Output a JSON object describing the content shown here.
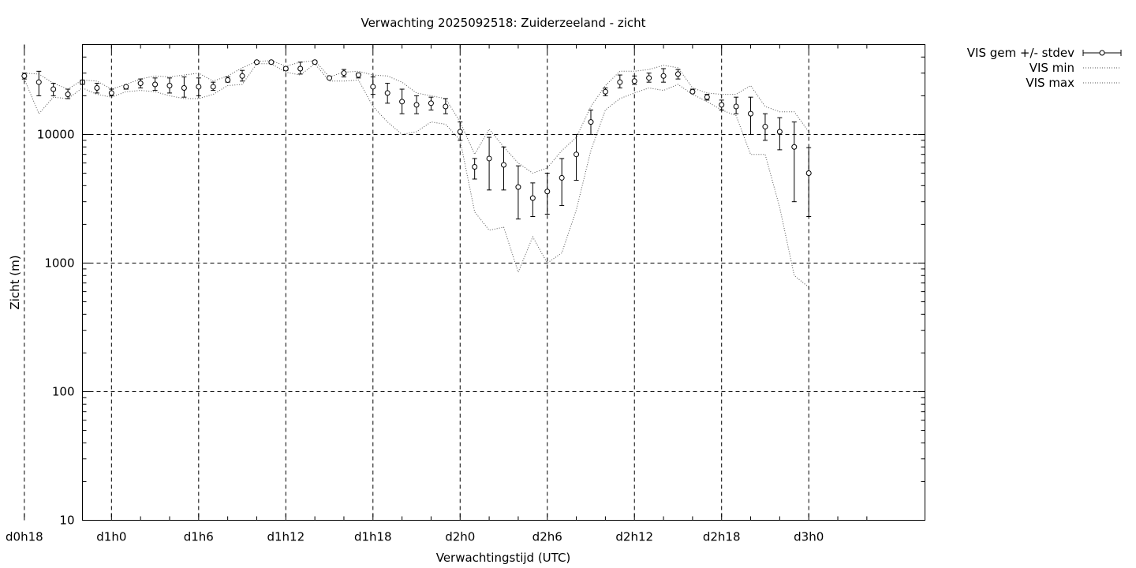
{
  "chart_data": {
    "type": "line",
    "title": "Verwachting 2025092518: Zuiderzeeland - zicht",
    "xlabel": "Verwachtingstijd (UTC)",
    "ylabel": "Zicht (m)",
    "yscale": "log",
    "ylim": [
      10,
      50000
    ],
    "xlim_hours": [
      -2,
      56
    ],
    "grid": true,
    "legend_position": "outside-top-right",
    "x_tick_labels": [
      "d0h18",
      "d1h0",
      "d1h6",
      "d1h12",
      "d1h18",
      "d2h0",
      "d2h6",
      "d2h12",
      "d2h18",
      "d3h0"
    ],
    "y_tick_labels": [
      "10",
      "100",
      "1000",
      "10000"
    ],
    "series": [
      {
        "name": "VIS gem +/- stdev",
        "style": "points-errorbars",
        "x": [
          "d0h18",
          "d0h19",
          "d0h20",
          "d0h21",
          "d0h22",
          "d0h23",
          "d1h0",
          "d1h1",
          "d1h2",
          "d1h3",
          "d1h4",
          "d1h5",
          "d1h6",
          "d1h7",
          "d1h8",
          "d1h9",
          "d1h10",
          "d1h11",
          "d1h12",
          "d1h13",
          "d1h14",
          "d1h15",
          "d1h16",
          "d1h17",
          "d1h18",
          "d1h19",
          "d1h20",
          "d1h21",
          "d1h22",
          "d1h23",
          "d2h0",
          "d2h1",
          "d2h2",
          "d2h3",
          "d2h4",
          "d2h5",
          "d2h6",
          "d2h7",
          "d2h8",
          "d2h9",
          "d2h10",
          "d2h11",
          "d2h12",
          "d2h13",
          "d2h14",
          "d2h15",
          "d2h16",
          "d2h17",
          "d2h18",
          "d2h19",
          "d2h20",
          "d2h21",
          "d2h22",
          "d2h23",
          "d3h0"
        ],
        "y": [
          28500,
          25500,
          22500,
          20500,
          25500,
          23000,
          21000,
          23500,
          25000,
          24500,
          24000,
          23000,
          23500,
          23500,
          26500,
          28500,
          36500,
          36500,
          32500,
          32500,
          36500,
          27500,
          30000,
          29000,
          23500,
          21000,
          18000,
          17000,
          17500,
          16500,
          10500,
          5600,
          6500,
          5800,
          3900,
          3200,
          3600,
          4600,
          7000,
          12500,
          21500,
          25500,
          26000,
          27500,
          28500,
          29500,
          21500,
          19500,
          17000,
          16500,
          14500,
          11500,
          10500,
          8000,
          5000
        ],
        "ylow": [
          27000,
          20000,
          20000,
          19000,
          24500,
          21000,
          20000,
          22500,
          23000,
          22000,
          21000,
          19500,
          20000,
          22000,
          25500,
          26000,
          36000,
          36000,
          31500,
          29500,
          35500,
          27000,
          28000,
          27500,
          20500,
          17500,
          14500,
          14500,
          15500,
          14500,
          9000,
          4500,
          3700,
          3700,
          2200,
          2300,
          2400,
          2800,
          4400,
          10000,
          20000,
          23000,
          24500,
          25500,
          25500,
          27000,
          21000,
          18500,
          15500,
          14500,
          10000,
          9000,
          7600,
          3000,
          2300
        ],
        "yhigh": [
          30000,
          31000,
          25000,
          22500,
          26500,
          25000,
          22500,
          24000,
          27000,
          27500,
          27500,
          28000,
          27500,
          25500,
          28000,
          31500,
          37000,
          37000,
          33500,
          36500,
          37500,
          28000,
          32000,
          30000,
          28000,
          25000,
          22500,
          20000,
          19500,
          19000,
          12500,
          6500,
          9500,
          8000,
          5700,
          4200,
          5000,
          6500,
          10000,
          15500,
          23000,
          29000,
          28500,
          30000,
          32500,
          32000,
          22500,
          20500,
          18500,
          19500,
          19500,
          14500,
          13500,
          12500,
          7900
        ]
      },
      {
        "name": "VIS min",
        "style": "dotted",
        "x": [
          "d0h18",
          "d0h19",
          "d0h20",
          "d0h21",
          "d0h22",
          "d0h23",
          "d1h0",
          "d1h1",
          "d1h2",
          "d1h3",
          "d1h4",
          "d1h5",
          "d1h6",
          "d1h7",
          "d1h8",
          "d1h9",
          "d1h10",
          "d1h11",
          "d1h12",
          "d1h13",
          "d1h14",
          "d1h15",
          "d1h16",
          "d1h17",
          "d1h18",
          "d1h19",
          "d1h20",
          "d1h21",
          "d1h22",
          "d1h23",
          "d2h0",
          "d2h1",
          "d2h2",
          "d2h3",
          "d2h4",
          "d2h5",
          "d2h6",
          "d2h7",
          "d2h8",
          "d2h9",
          "d2h10",
          "d2h11",
          "d2h12",
          "d2h13",
          "d2h14",
          "d2h15",
          "d2h16",
          "d2h17",
          "d2h18",
          "d2h19",
          "d2h20",
          "d2h21",
          "d2h22",
          "d2h23",
          "d3h0"
        ],
        "y": [
          27000,
          14500,
          19500,
          19000,
          23000,
          20500,
          19500,
          21500,
          22000,
          21500,
          20000,
          19000,
          19000,
          20500,
          24000,
          24500,
          35500,
          35500,
          30500,
          29000,
          35500,
          26000,
          26000,
          26500,
          16500,
          12500,
          10000,
          10500,
          12500,
          12000,
          9000,
          2500,
          1800,
          1900,
          850,
          1600,
          1000,
          1200,
          2600,
          7500,
          15500,
          19000,
          21000,
          23000,
          22000,
          24500,
          20500,
          18000,
          15500,
          14000,
          7000,
          7000,
          2700,
          800,
          650
        ]
      },
      {
        "name": "VIS max",
        "style": "dotted",
        "x": [
          "d0h18",
          "d0h19",
          "d0h20",
          "d0h21",
          "d0h22",
          "d0h23",
          "d1h0",
          "d1h1",
          "d1h2",
          "d1h3",
          "d1h4",
          "d1h5",
          "d1h6",
          "d1h7",
          "d1h8",
          "d1h9",
          "d1h10",
          "d1h11",
          "d1h12",
          "d1h13",
          "d1h14",
          "d1h15",
          "d1h16",
          "d1h17",
          "d1h18",
          "d1h19",
          "d1h20",
          "d1h21",
          "d1h22",
          "d1h23",
          "d2h0",
          "d2h1",
          "d2h2",
          "d2h3",
          "d2h4",
          "d2h5",
          "d2h6",
          "d2h7",
          "d2h8",
          "d2h9",
          "d2h10",
          "d2h11",
          "d2h12",
          "d2h13",
          "d2h14",
          "d2h15",
          "d2h16",
          "d2h17",
          "d2h18",
          "d2h19",
          "d2h20",
          "d2h21",
          "d2h22",
          "d2h23",
          "d3h0"
        ],
        "y": [
          30000,
          29500,
          25000,
          22500,
          26500,
          26000,
          22500,
          24500,
          27000,
          28500,
          28000,
          29000,
          30000,
          26000,
          28500,
          33000,
          37000,
          37500,
          34000,
          36500,
          37500,
          28000,
          30500,
          31000,
          29000,
          28500,
          25500,
          21000,
          20000,
          19000,
          12500,
          7000,
          11000,
          8000,
          6000,
          5000,
          5500,
          7500,
          9500,
          16500,
          24000,
          31000,
          31000,
          32000,
          34500,
          33000,
          23000,
          21000,
          20500,
          20500,
          24000,
          16500,
          15000,
          15000,
          10500
        ]
      }
    ]
  }
}
